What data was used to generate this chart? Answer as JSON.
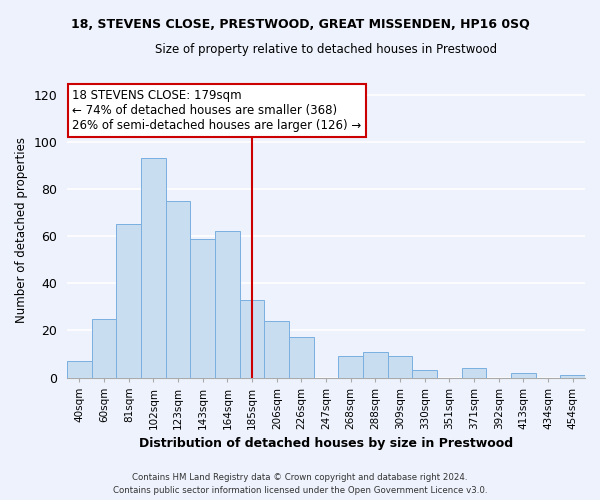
{
  "title_line1": "18, STEVENS CLOSE, PRESTWOOD, GREAT MISSENDEN, HP16 0SQ",
  "title_line2": "Size of property relative to detached houses in Prestwood",
  "xlabel": "Distribution of detached houses by size in Prestwood",
  "ylabel": "Number of detached properties",
  "bar_labels": [
    "40sqm",
    "60sqm",
    "81sqm",
    "102sqm",
    "123sqm",
    "143sqm",
    "164sqm",
    "185sqm",
    "206sqm",
    "226sqm",
    "247sqm",
    "268sqm",
    "288sqm",
    "309sqm",
    "330sqm",
    "351sqm",
    "371sqm",
    "392sqm",
    "413sqm",
    "434sqm",
    "454sqm"
  ],
  "bar_values": [
    7,
    25,
    65,
    93,
    75,
    59,
    62,
    33,
    24,
    17,
    0,
    9,
    11,
    9,
    3,
    0,
    4,
    0,
    2,
    0,
    1
  ],
  "bar_color": "#c8ddf0",
  "bar_edge_color": "#7aafe0",
  "vline_label": "185sqm",
  "vline_index": 7,
  "vline_color": "#cc0000",
  "annotation_title": "18 STEVENS CLOSE: 179sqm",
  "annotation_line1": "← 74% of detached houses are smaller (368)",
  "annotation_line2": "26% of semi-detached houses are larger (126) →",
  "annotation_box_color": "white",
  "annotation_box_edge": "#cc0000",
  "footer_line1": "Contains HM Land Registry data © Crown copyright and database right 2024.",
  "footer_line2": "Contains public sector information licensed under the Open Government Licence v3.0.",
  "ylim": [
    0,
    125
  ],
  "yticks": [
    0,
    20,
    40,
    60,
    80,
    100,
    120
  ],
  "background_color": "#eef2fc"
}
